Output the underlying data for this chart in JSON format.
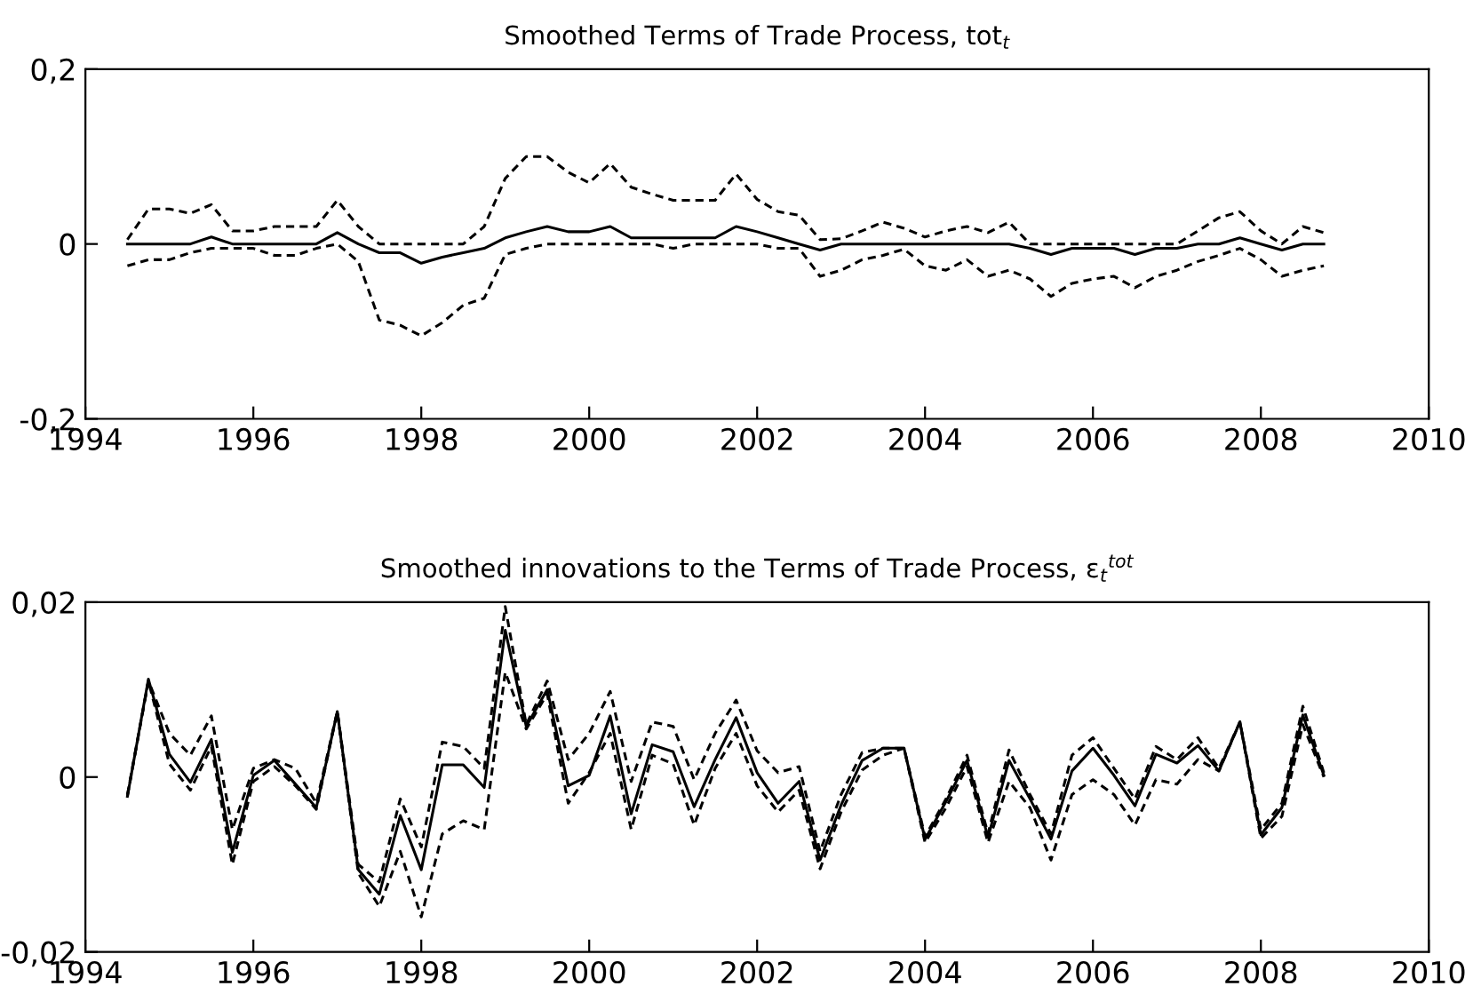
{
  "chart_data": [
    {
      "type": "line",
      "title": "Smoothed Terms of Trade Process, tot$_{t}$",
      "x": [
        1994.5,
        1994.75,
        1995,
        1995.25,
        1995.5,
        1995.75,
        1996,
        1996.25,
        1996.5,
        1996.75,
        1997,
        1997.25,
        1997.5,
        1997.75,
        1998,
        1998.25,
        1998.5,
        1998.75,
        1999,
        1999.25,
        1999.5,
        1999.75,
        2000,
        2000.25,
        2000.5,
        2000.75,
        2001,
        2001.25,
        2001.5,
        2001.75,
        2002,
        2002.25,
        2002.5,
        2002.75,
        2003,
        2003.25,
        2003.5,
        2003.75,
        2004,
        2004.25,
        2004.5,
        2004.75,
        2005,
        2005.25,
        2005.5,
        2005.75,
        2006,
        2006.25,
        2006.5,
        2006.75,
        2007,
        2007.25,
        2007.5,
        2007.75,
        2008,
        2008.25,
        2008.5,
        2008.75
      ],
      "series": [
        {
          "color": "#000000",
          "line_style": "solid",
          "values": [
            0,
            0,
            0,
            0,
            0.008,
            0,
            0,
            0,
            0,
            0,
            0.013,
            0,
            -0.01,
            -0.01,
            -0.022,
            -0.015,
            -0.01,
            -0.005,
            0.007,
            0.014,
            0.02,
            0.014,
            0.014,
            0.02,
            0.007,
            0.007,
            0.007,
            0.007,
            0.007,
            0.02,
            0.014,
            0.007,
            0,
            -0.007,
            0,
            0,
            0,
            0,
            0,
            0,
            0,
            0,
            0,
            -0.005,
            -0.012,
            -0.005,
            -0.005,
            -0.005,
            -0.012,
            -0.005,
            -0.005,
            0,
            0,
            0.007,
            0,
            -0.007,
            0,
            0
          ]
        },
        {
          "color": "#000000",
          "line_style": "dashed",
          "values": [
            0.005,
            0.04,
            0.04,
            0.035,
            0.045,
            0.015,
            0.015,
            0.02,
            0.02,
            0.02,
            0.05,
            0.02,
            0,
            0,
            0,
            0,
            0,
            0.02,
            0.075,
            0.1,
            0.1,
            0.082,
            0.07,
            0.092,
            0.065,
            0.057,
            0.05,
            0.05,
            0.05,
            0.08,
            0.051,
            0.037,
            0.033,
            0.005,
            0.006,
            0.015,
            0.025,
            0.018,
            0.008,
            0.015,
            0.02,
            0.013,
            0.025,
            0,
            0,
            0,
            0,
            0,
            0,
            0,
            0,
            0.015,
            0.03,
            0.037,
            0.015,
            0,
            0.02,
            0.013
          ]
        },
        {
          "color": "#000000",
          "line_style": "dashed",
          "values": [
            -0.025,
            -0.018,
            -0.018,
            -0.01,
            -0.005,
            -0.005,
            -0.005,
            -0.013,
            -0.013,
            -0.005,
            0,
            -0.02,
            -0.087,
            -0.093,
            -0.105,
            -0.09,
            -0.07,
            -0.062,
            -0.012,
            -0.005,
            0,
            0,
            0,
            0,
            0,
            0,
            -0.005,
            0,
            0,
            0,
            0,
            -0.005,
            -0.005,
            -0.037,
            -0.03,
            -0.018,
            -0.013,
            -0.006,
            -0.025,
            -0.03,
            -0.018,
            -0.037,
            -0.03,
            -0.04,
            -0.06,
            -0.045,
            -0.04,
            -0.037,
            -0.05,
            -0.037,
            -0.03,
            -0.02,
            -0.013,
            -0.005,
            -0.018,
            -0.037,
            -0.03,
            -0.025
          ]
        }
      ],
      "xlim": [
        1994,
        2010
      ],
      "xticks": [
        1994,
        1996,
        1998,
        2000,
        2002,
        2004,
        2006,
        2008,
        2010
      ],
      "ylim": [
        -0.2,
        0.2
      ],
      "yticks": [
        {
          "value": -0.2,
          "label": "-0,2"
        },
        0,
        {
          "value": 0.2,
          "label": "0,2"
        }
      ],
      "grid": false,
      "legend": false
    },
    {
      "type": "line",
      "title": "Smoothed innovations to the Terms of Trade Process, ε$_{t}$$^{tot}$",
      "x": [
        1994.5,
        1994.75,
        1995,
        1995.25,
        1995.5,
        1995.75,
        1996,
        1996.25,
        1996.5,
        1996.75,
        1997,
        1997.25,
        1997.5,
        1997.75,
        1998,
        1998.25,
        1998.5,
        1998.75,
        1999,
        1999.25,
        1999.5,
        1999.75,
        2000,
        2000.25,
        2000.5,
        2000.75,
        2001,
        2001.25,
        2001.5,
        2001.75,
        2002,
        2002.25,
        2002.5,
        2002.75,
        2003,
        2003.25,
        2003.5,
        2003.75,
        2004,
        2004.25,
        2004.5,
        2004.75,
        2005,
        2005.25,
        2005.5,
        2005.75,
        2006,
        2006.25,
        2006.5,
        2006.75,
        2007,
        2007.25,
        2007.5,
        2007.75,
        2008,
        2008.25,
        2008.5,
        2008.75
      ],
      "series": [
        {
          "color": "#000000",
          "line_style": "solid",
          "values": [
            -0.0022,
            0.0112,
            0.0026,
            -0.0006,
            0.0043,
            -0.0086,
            0.0002,
            0.0019,
            -0.0008,
            -0.0035,
            0.0075,
            -0.0106,
            -0.0134,
            -0.0044,
            -0.0106,
            0.0014,
            0.0014,
            -0.0012,
            0.0168,
            0.0058,
            0.01,
            -0.001,
            0.0002,
            0.007,
            -0.0042,
            0.0037,
            0.0029,
            -0.0034,
            0.002,
            0.0068,
            0.0005,
            -0.003,
            -0.0005,
            -0.0095,
            -0.0032,
            0.0019,
            0.0033,
            0.0033,
            -0.0071,
            -0.0028,
            0.0019,
            -0.0069,
            0.0019,
            -0.0025,
            -0.0071,
            0.0007,
            0.0033,
            0.0002,
            -0.0033,
            0.0026,
            0.0016,
            0.0036,
            0.0007,
            0.0063,
            -0.0066,
            -0.0035,
            0.0071,
            0.0002
          ]
        },
        {
          "color": "#000000",
          "line_style": "dashed",
          "values": [
            -0.002,
            0.011,
            0.005,
            0.0025,
            0.007,
            -0.006,
            0.001,
            0.002,
            0.001,
            -0.003,
            0.0075,
            -0.01,
            -0.012,
            -0.0025,
            -0.008,
            0.004,
            0.0035,
            0.001,
            0.0195,
            0.006,
            0.011,
            0.002,
            0.005,
            0.0098,
            -0.0005,
            0.0063,
            0.0058,
            -0.0003,
            0.005,
            0.0088,
            0.003,
            0.0005,
            0.0012,
            -0.0085,
            -0.002,
            0.0028,
            0.0033,
            0.0033,
            -0.0068,
            -0.0025,
            0.0025,
            -0.0065,
            0.0031,
            -0.002,
            -0.0065,
            0.0025,
            0.0045,
            0.001,
            -0.0025,
            0.0035,
            0.002,
            0.0045,
            0.001,
            0.0063,
            -0.006,
            -0.003,
            0.0081,
            0.0005
          ]
        },
        {
          "color": "#000000",
          "line_style": "dashed",
          "values": [
            -0.0022,
            0.011,
            0.0015,
            -0.0015,
            0.0035,
            -0.01,
            -0.0005,
            0.0012,
            -0.001,
            -0.0037,
            0.0075,
            -0.011,
            -0.0148,
            -0.0085,
            -0.016,
            -0.0065,
            -0.005,
            -0.006,
            0.012,
            0.0055,
            0.0095,
            -0.003,
            0.0005,
            0.005,
            -0.006,
            0.0025,
            0.0015,
            -0.0055,
            0.001,
            0.005,
            -0.001,
            -0.004,
            -0.0015,
            -0.0105,
            -0.004,
            0.0008,
            0.0025,
            0.0033,
            -0.0075,
            -0.0035,
            0.0012,
            -0.0075,
            -0.0005,
            -0.0035,
            -0.0095,
            -0.002,
            -0.0003,
            -0.002,
            -0.0055,
            -0.0003,
            -0.0008,
            0.002,
            0.0007,
            0.0063,
            -0.007,
            -0.0045,
            0.006,
            0.0
          ]
        }
      ],
      "xlim": [
        1994,
        2010
      ],
      "xticks": [
        1994,
        1996,
        1998,
        2000,
        2002,
        2004,
        2006,
        2008,
        2010
      ],
      "ylim": [
        -0.02,
        0.02
      ],
      "yticks": [
        {
          "value": -0.02,
          "label": "-0,02"
        },
        0,
        {
          "value": 0.02,
          "label": "0,02"
        }
      ],
      "grid": false,
      "legend": false
    }
  ]
}
